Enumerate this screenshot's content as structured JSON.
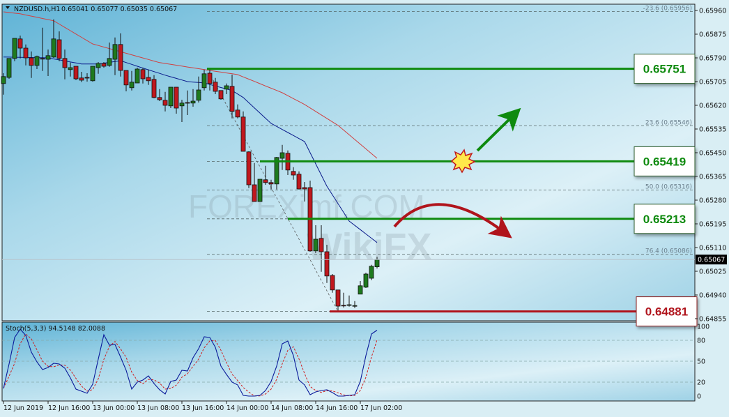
{
  "header": {
    "symbol_label": "NZDUSD.h,H1",
    "ohlc_label": "0.65041 0.65077 0.65035 0.65067"
  },
  "watermarks": [
    "FOREXimf.COM",
    "WikiFX"
  ],
  "colors": {
    "bull": "#1e7a1e",
    "bear": "#c0181e",
    "ma_fast": "#0a1a8a",
    "ma_slow": "#d04040",
    "support_line": "#0e8a0e",
    "low_line": "#b0141c",
    "stoch_main": "#0a1a9a",
    "stoch_signal": "#d02020"
  },
  "chart_data": [
    {
      "type": "candlestick",
      "symbol": "NZDUSD.h",
      "timeframe": "H1",
      "ylim": [
        0.64855,
        0.6596
      ],
      "price_ticks": [
        "0.65960",
        "0.65875",
        "0.65790",
        "0.65705",
        "0.65620",
        "0.65535",
        "0.65450",
        "0.65365",
        "0.65280",
        "0.65195",
        "0.65110",
        "0.65025",
        "0.64940",
        "0.64855"
      ],
      "time_labels": [
        {
          "index": 0,
          "label": "12 Jun 2019"
        },
        {
          "index": 8,
          "label": "12 Jun 16:00"
        },
        {
          "index": 16,
          "label": "13 Jun 00:00"
        },
        {
          "index": 24,
          "label": "13 Jun 08:00"
        },
        {
          "index": 32,
          "label": "13 Jun 16:00"
        },
        {
          "index": 40,
          "label": "14 Jun 00:00"
        },
        {
          "index": 48,
          "label": "14 Jun 08:00"
        },
        {
          "index": 56,
          "label": "14 Jun 16:00"
        },
        {
          "index": 64,
          "label": "17 Jun 02:00"
        }
      ],
      "current_price": "0.65067",
      "ohlc": [
        [
          0.65698,
          0.65735,
          0.65658,
          0.65723
        ],
        [
          0.6572,
          0.65788,
          0.65715,
          0.65788
        ],
        [
          0.65788,
          0.6586,
          0.65778,
          0.6586
        ],
        [
          0.65858,
          0.6587,
          0.65788,
          0.65825
        ],
        [
          0.65825,
          0.65838,
          0.65763,
          0.6579
        ],
        [
          0.6579,
          0.65813,
          0.65718,
          0.65763
        ],
        [
          0.65763,
          0.65798,
          0.6575,
          0.65795
        ],
        [
          0.65788,
          0.65898,
          0.65743,
          0.65787
        ],
        [
          0.65785,
          0.6582,
          0.65725,
          0.65798
        ],
        [
          0.65793,
          0.65928,
          0.6579,
          0.65858
        ],
        [
          0.65855,
          0.65885,
          0.65778,
          0.65788
        ],
        [
          0.65788,
          0.6582,
          0.65713,
          0.65755
        ],
        [
          0.65748,
          0.65773,
          0.65723,
          0.65755
        ],
        [
          0.6576,
          0.6576,
          0.6571,
          0.65715
        ],
        [
          0.65718,
          0.6574,
          0.65703,
          0.6571
        ],
        [
          0.6572,
          0.65735,
          0.65705,
          0.65718
        ],
        [
          0.65708,
          0.6576,
          0.65705,
          0.6576
        ],
        [
          0.65755,
          0.65775,
          0.65733,
          0.6577
        ],
        [
          0.6577,
          0.65775,
          0.65755,
          0.6576
        ],
        [
          0.65763,
          0.65845,
          0.65758,
          0.65788
        ],
        [
          0.65785,
          0.65863,
          0.65728,
          0.65838
        ],
        [
          0.65838,
          0.65878,
          0.65723,
          0.65745
        ],
        [
          0.65745,
          0.65745,
          0.6567,
          0.65693
        ],
        [
          0.65683,
          0.65743,
          0.65673,
          0.65703
        ],
        [
          0.657,
          0.65755,
          0.657,
          0.6575
        ],
        [
          0.65748,
          0.65755,
          0.65698,
          0.65715
        ],
        [
          0.6572,
          0.65748,
          0.65693,
          0.65708
        ],
        [
          0.65713,
          0.65728,
          0.65645,
          0.65648
        ],
        [
          0.65648,
          0.65678,
          0.65635,
          0.6564
        ],
        [
          0.65638,
          0.65668,
          0.65598,
          0.6562
        ],
        [
          0.65618,
          0.65685,
          0.6561,
          0.65685
        ],
        [
          0.65685,
          0.65685,
          0.6559,
          0.6561
        ],
        [
          0.65618,
          0.6564,
          0.6556,
          0.65628
        ],
        [
          0.6563,
          0.65673,
          0.65585,
          0.65628
        ],
        [
          0.65628,
          0.65678,
          0.65615,
          0.65635
        ],
        [
          0.65638,
          0.65723,
          0.6563,
          0.65675
        ],
        [
          0.65683,
          0.65748,
          0.65673,
          0.65733
        ],
        [
          0.65735,
          0.65751,
          0.65673,
          0.65698
        ],
        [
          0.65703,
          0.65718,
          0.6566,
          0.6567
        ],
        [
          0.65673,
          0.65673,
          0.6564,
          0.65643
        ],
        [
          0.65678,
          0.65698,
          0.6566,
          0.6569
        ],
        [
          0.65688,
          0.6573,
          0.65573,
          0.65598
        ],
        [
          0.65603,
          0.65623,
          0.65573,
          0.65578
        ],
        [
          0.65578,
          0.65598,
          0.65455,
          0.65455
        ],
        [
          0.65453,
          0.65455,
          0.65323,
          0.65335
        ],
        [
          0.65335,
          0.65413,
          0.65275,
          0.65275
        ],
        [
          0.65275,
          0.65355,
          0.65275,
          0.65355
        ],
        [
          0.65353,
          0.65403,
          0.65335,
          0.65343
        ],
        [
          0.65343,
          0.65353,
          0.65318,
          0.65338
        ],
        [
          0.65338,
          0.65435,
          0.65318,
          0.65433
        ],
        [
          0.6543,
          0.65478,
          0.65388,
          0.6545
        ],
        [
          0.65448,
          0.65458,
          0.6537,
          0.65388
        ],
        [
          0.65383,
          0.65398,
          0.65353,
          0.6537
        ],
        [
          0.65373,
          0.65383,
          0.65318,
          0.6532
        ],
        [
          0.65325,
          0.65345,
          0.65275,
          0.6532
        ],
        [
          0.65325,
          0.6535,
          0.65095,
          0.65098
        ],
        [
          0.65098,
          0.6519,
          0.6509,
          0.6514
        ],
        [
          0.65143,
          0.6519,
          0.65023,
          0.65095
        ],
        [
          0.65095,
          0.6512,
          0.64983,
          0.65008
        ],
        [
          0.6501,
          0.65015,
          0.64948,
          0.64958
        ],
        [
          0.64958,
          0.64958,
          0.64881,
          0.649
        ],
        [
          0.64903,
          0.64948,
          0.64895,
          0.64902
        ],
        [
          0.64903,
          0.64938,
          0.64898,
          0.64905
        ],
        [
          0.649,
          0.64918,
          0.64893,
          0.64902
        ],
        [
          0.64943,
          0.6499,
          0.64943,
          0.64973
        ],
        [
          0.64968,
          0.6502,
          0.64965,
          0.65015
        ],
        [
          0.65,
          0.65048,
          0.64993,
          0.65043
        ],
        [
          0.65041,
          0.65077,
          0.65035,
          0.65067
        ]
      ],
      "ma_fast": [
        [
          0,
          0.65793
        ],
        [
          8,
          0.6579
        ],
        [
          14,
          0.65768
        ],
        [
          17,
          0.65768
        ],
        [
          21,
          0.6578
        ],
        [
          24,
          0.6576
        ],
        [
          29,
          0.65728
        ],
        [
          33,
          0.65705
        ],
        [
          36,
          0.657
        ],
        [
          41,
          0.65673
        ],
        [
          43,
          0.65648
        ],
        [
          48,
          0.65555
        ],
        [
          54,
          0.6549
        ],
        [
          58,
          0.6533
        ],
        [
          62,
          0.65205
        ],
        [
          67,
          0.65128
        ]
      ],
      "ma_slow": [
        [
          0,
          0.65955
        ],
        [
          3,
          0.65948
        ],
        [
          9,
          0.65923
        ],
        [
          16,
          0.6584
        ],
        [
          28,
          0.65773
        ],
        [
          36,
          0.65748
        ],
        [
          42,
          0.6573
        ],
        [
          50,
          0.65665
        ],
        [
          54,
          0.65623
        ],
        [
          60,
          0.65548
        ],
        [
          67,
          0.6543
        ]
      ],
      "fibonacci": {
        "from": 0.65751,
        "to": 0.64881,
        "levels": [
          {
            "price": 0.65956,
            "label": "-23.6 (0.65956)"
          },
          {
            "price": 0.65546,
            "label": "23.6 (0.65546)"
          },
          {
            "price": 0.65419,
            "label": ""
          },
          {
            "price": 0.65316,
            "label": "50.0 (0.65316)"
          },
          {
            "price": 0.65213,
            "label": ""
          },
          {
            "price": 0.65086,
            "label": "76.4 (0.65086)"
          },
          {
            "price": 0.64881,
            "label": ""
          }
        ]
      },
      "levels": [
        {
          "price": 0.65751,
          "label": "0.65751",
          "kind": "resistance",
          "start_index": 36.5
        },
        {
          "price": 0.65419,
          "label": "0.65419",
          "kind": "resistance",
          "start_index": 46
        },
        {
          "price": 0.65213,
          "label": "0.65213",
          "kind": "resistance",
          "start_index": 51
        },
        {
          "price": 0.64881,
          "label": "0.64881",
          "kind": "support",
          "start_index": 58.5
        }
      ],
      "annotations": [
        "green-up-arrow",
        "explosion-icon",
        "red-curved-arrow"
      ]
    },
    {
      "type": "line",
      "indicator": "Stoch",
      "title": "Stoch(5,3,3) 94.5148 82.0088",
      "ylim": [
        0,
        100
      ],
      "y_ticks": [
        "100",
        "80",
        "50",
        "20",
        "0"
      ],
      "levels": [
        80,
        50,
        20
      ],
      "main": [
        11,
        46,
        84,
        96,
        87,
        63,
        49,
        38,
        41,
        47,
        46,
        40,
        26,
        10,
        7,
        4,
        17,
        53,
        88,
        73,
        74,
        56,
        37,
        10,
        20,
        23,
        29,
        18,
        9,
        3,
        21,
        23,
        37,
        36,
        55,
        68,
        85,
        84,
        70,
        43,
        31,
        20,
        16,
        1,
        0,
        0,
        1,
        8,
        21,
        43,
        75,
        79,
        58,
        23,
        16,
        2,
        6,
        8,
        9,
        5,
        0,
        0,
        1,
        2,
        21,
        58,
        89,
        94.51
      ]
    }
  ]
}
